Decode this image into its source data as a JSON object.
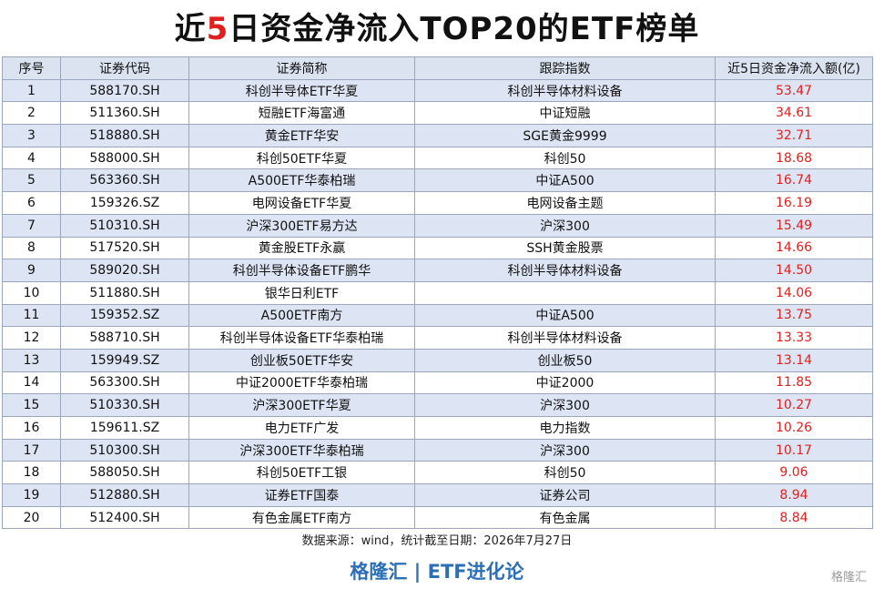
{
  "header": {
    "title_prefix": "近",
    "title_highlight": "5",
    "title_suffix": "日资金净流入TOP20的ETF榜单"
  },
  "table": {
    "columns": [
      "序号",
      "证券代码",
      "证券简称",
      "跟踪指数",
      "近5日资金净流入额(亿)"
    ],
    "rows": [
      [
        "1",
        "588170.SH",
        "科创半导体ETF华夏",
        "科创半导体材料设备",
        "53.47"
      ],
      [
        "2",
        "511360.SH",
        "短融ETF海富通",
        "中证短融",
        "34.61"
      ],
      [
        "3",
        "518880.SH",
        "黄金ETF华安",
        "SGE黄金9999",
        "32.71"
      ],
      [
        "4",
        "588000.SH",
        "科创50ETF华夏",
        "科创50",
        "18.68"
      ],
      [
        "5",
        "563360.SH",
        "A500ETF华泰柏瑞",
        "中证A500",
        "16.74"
      ],
      [
        "6",
        "159326.SZ",
        "电网设备ETF华夏",
        "电网设备主题",
        "16.19"
      ],
      [
        "7",
        "510310.SH",
        "沪深300ETF易方达",
        "沪深300",
        "15.49"
      ],
      [
        "8",
        "517520.SH",
        "黄金股ETF永赢",
        "SSH黄金股票",
        "14.66"
      ],
      [
        "9",
        "589020.SH",
        "科创半导体设备ETF鹏华",
        "科创半导体材料设备",
        "14.50"
      ],
      [
        "10",
        "511880.SH",
        "银华日利ETF",
        null,
        "14.06"
      ],
      [
        "11",
        "159352.SZ",
        "A500ETF南方",
        "中证A500",
        "13.75"
      ],
      [
        "12",
        "588710.SH",
        "科创半导体设备ETF华泰柏瑞",
        "科创半导体材料设备",
        "13.33"
      ],
      [
        "13",
        "159949.SZ",
        "创业板50ETF华安",
        "创业板50",
        "13.14"
      ],
      [
        "14",
        "563300.SH",
        "中证2000ETF华泰柏瑞",
        "中证2000",
        "11.85"
      ],
      [
        "15",
        "510330.SH",
        "沪深300ETF华夏",
        "沪深300",
        "10.27"
      ],
      [
        "16",
        "159611.SZ",
        "电力ETF广发",
        "电力指数",
        "10.26"
      ],
      [
        "17",
        "510300.SH",
        "沪深300ETF华泰柏瑞",
        "沪深300",
        "10.17"
      ],
      [
        "18",
        "588050.SH",
        "科创50ETF工银",
        "科创50",
        "9.06"
      ],
      [
        "19",
        "512880.SH",
        "证券ETF国泰",
        "证券公司",
        "8.94"
      ],
      [
        "20",
        "512400.SH",
        "有色金属ETF南方",
        "有色金属",
        "8.84"
      ]
    ]
  },
  "footer": {
    "source": "数据来源：wind，统计截至日期：2026年7月27日",
    "brand": "格隆汇 | ETF进化论",
    "watermark": "格隆汇"
  }
}
